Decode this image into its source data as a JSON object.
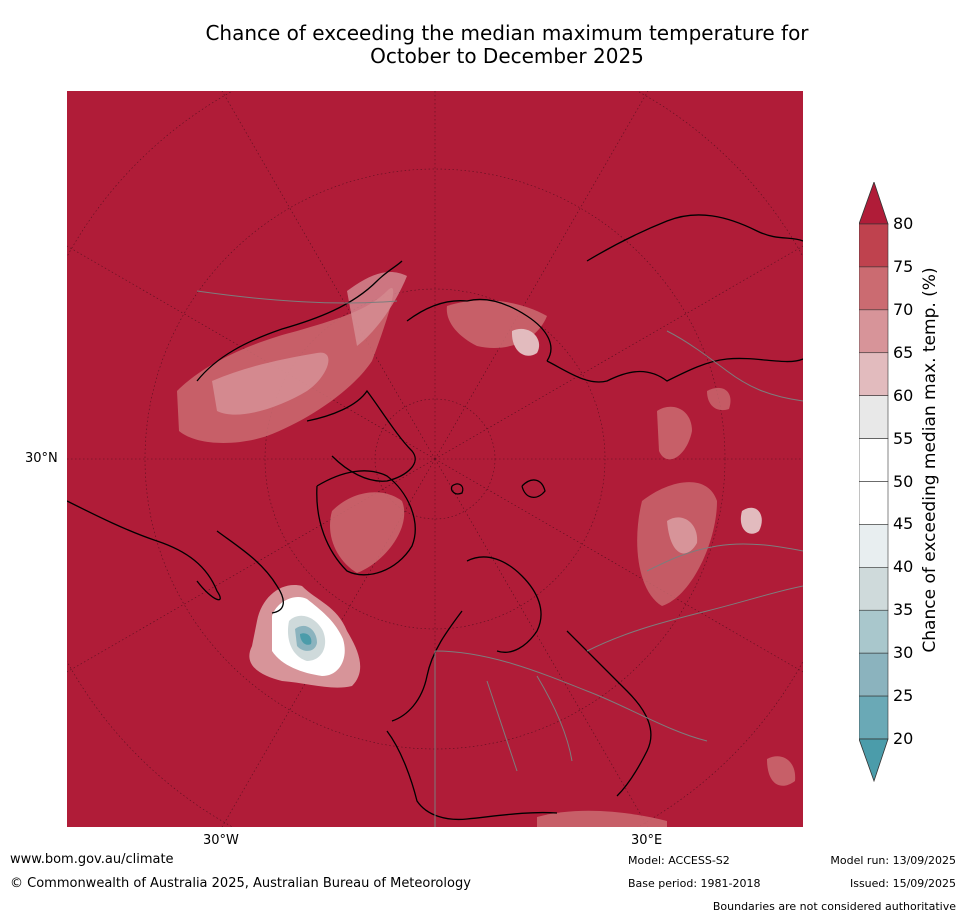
{
  "title": {
    "line1": "Chance of exceeding the median maximum temperature for",
    "line2": "October to December 2025"
  },
  "map": {
    "background_color": "#b01c38",
    "lat_label": "30°N",
    "lon_labels": [
      "30°W",
      "30°E"
    ]
  },
  "colorbar": {
    "label": "Chance of exceeding median max. temp. (%)",
    "ticks": [
      "80",
      "75",
      "70",
      "65",
      "60",
      "55",
      "50",
      "45",
      "40",
      "35",
      "30",
      "25",
      "20"
    ],
    "colors": [
      "#b01c38",
      "#bf424e",
      "#cb6b71",
      "#d79499",
      "#e2bbbe",
      "#e8e8e8",
      "#ffffff",
      "#ffffff",
      "#e8eef0",
      "#cfdadb",
      "#a9c7cc",
      "#8bb3be",
      "#6aa9b6",
      "#4b9caa"
    ]
  },
  "footer": {
    "website": "www.bom.gov.au/climate",
    "copyright": "© Commonwealth of Australia 2025, Australian Bureau of Meteorology",
    "model": "Model: ACCESS-S2",
    "base_period": "Base period: 1981-2018",
    "model_run": "Model run: 13/09/2025",
    "issued": "Issued: 15/09/2025",
    "disclaimer": "Boundaries are not considered authoritative"
  }
}
